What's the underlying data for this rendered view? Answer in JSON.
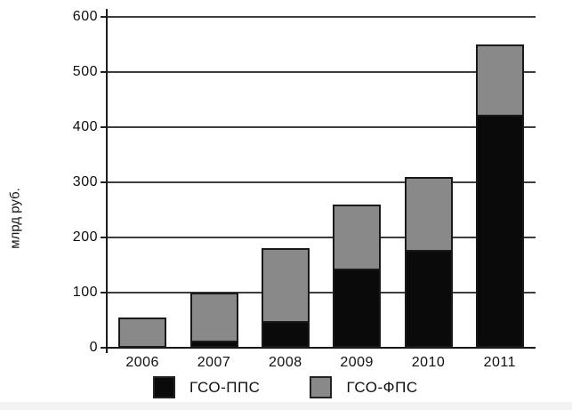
{
  "chart_data": {
    "type": "bar",
    "stacked": true,
    "title": "",
    "categories": [
      "2006",
      "2007",
      "2008",
      "2009",
      "2010",
      "2011"
    ],
    "series": [
      {
        "name": "ГСО-ППС",
        "color": "#0a0a0a",
        "values": [
          0,
          10,
          45,
          140,
          175,
          420
        ]
      },
      {
        "name": "ГСО-ФПС",
        "color": "#898989",
        "values": [
          55,
          90,
          135,
          120,
          135,
          130
        ]
      }
    ],
    "totals": [
      55,
      100,
      180,
      260,
      310,
      550
    ],
    "xlabel": "",
    "ylabel": "млрд руб.",
    "ylim": [
      0,
      600
    ],
    "yticks": [
      0,
      100,
      200,
      300,
      400,
      500,
      600
    ],
    "grid": true,
    "gridline_color": "#3d3d3d",
    "legend_position": "bottom"
  }
}
